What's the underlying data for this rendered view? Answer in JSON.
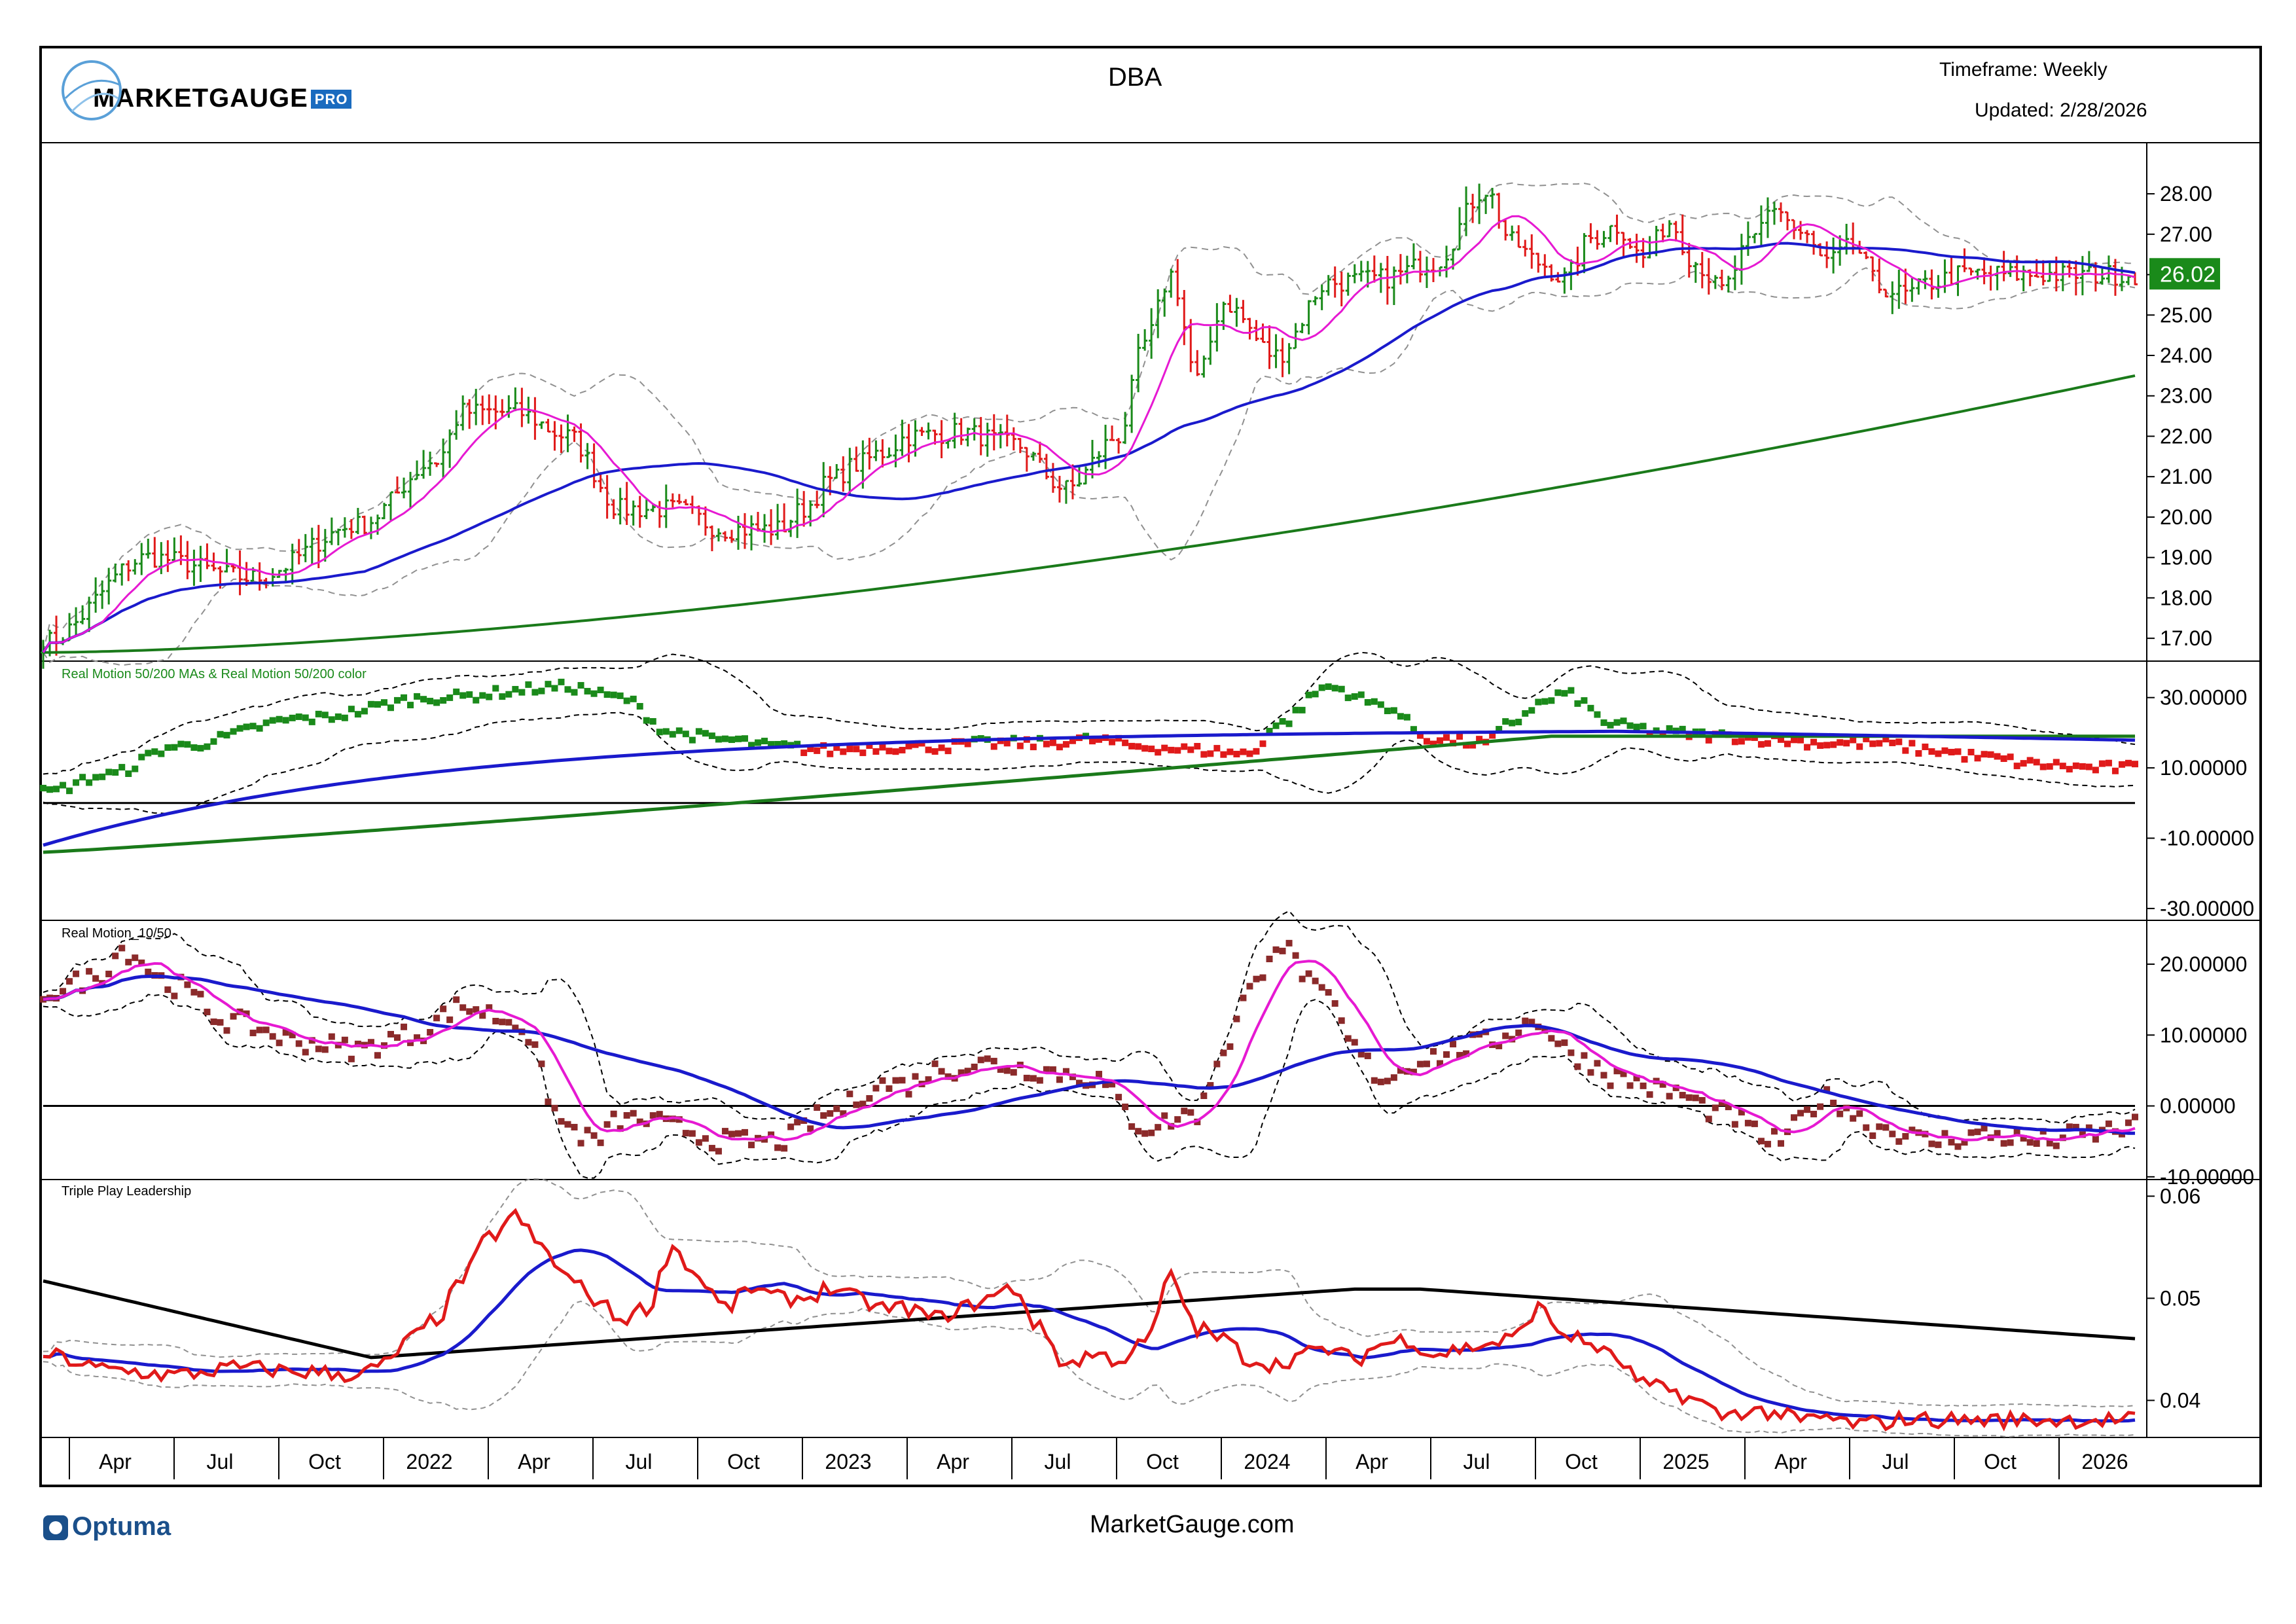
{
  "header": {
    "logo_text": "MARKETGAUGE",
    "logo_badge": "PRO",
    "symbol": "DBA",
    "timeframe": "Timeframe: Weekly",
    "updated": "Updated: 2/28/2026"
  },
  "footer": {
    "optuma": "Optuma",
    "site": "MarketGauge.com"
  },
  "colors": {
    "up_bar": "#1a8a1a",
    "down_bar": "#e01a1a",
    "ma10": "#e619d2",
    "ma50": "#1a1acc",
    "ma200": "#1a7a1a",
    "band": "#909090",
    "last_price_bg": "#1a8a1a"
  },
  "chart_data": [
    {
      "type": "ohlc",
      "title": "DBA",
      "timeframe": "Weekly",
      "y_ticks": [
        "28.00",
        "27.00",
        "26.00",
        "25.00",
        "24.00",
        "23.00",
        "22.00",
        "21.00",
        "20.00",
        "19.00",
        "18.00",
        "17.00"
      ],
      "ylim": [
        16.5,
        29.2
      ],
      "last_price": "26.02",
      "x_ticks": [
        "Apr",
        "Jul",
        "Oct",
        "2022",
        "Apr",
        "Jul",
        "Oct",
        "2023",
        "Apr",
        "Jul",
        "Oct",
        "2024",
        "Apr",
        "Jul",
        "Oct",
        "2025",
        "Apr",
        "Jul",
        "Oct",
        "2026"
      ],
      "anchor_weeks": [
        0,
        16,
        32,
        48,
        60,
        64,
        72,
        80,
        88,
        96,
        104,
        112,
        116,
        120,
        124,
        128,
        132,
        140,
        148,
        156,
        164,
        168,
        172,
        176,
        180,
        188,
        196,
        204,
        212,
        220,
        224,
        228,
        232,
        236,
        240,
        244,
        248,
        252,
        256,
        260,
        264,
        268,
        272,
        276,
        280,
        284,
        288,
        292,
        296,
        300,
        304,
        308,
        312,
        316,
        318
      ],
      "anchor_close": [
        16.9,
        19.0,
        18.5,
        19.8,
        21.4,
        22.6,
        22.6,
        22.0,
        20.2,
        20.2,
        19.7,
        19.7,
        20.2,
        20.9,
        21.3,
        21.6,
        22.0,
        22.1,
        21.8,
        20.7,
        22.0,
        24.3,
        26.0,
        23.4,
        25.3,
        24.0,
        25.8,
        25.9,
        26.3,
        28.1,
        26.8,
        26.3,
        25.9,
        26.9,
        27.2,
        26.4,
        27.3,
        26.3,
        25.6,
        26.7,
        27.7,
        27.0,
        26.3,
        26.7,
        25.7,
        25.5,
        25.8,
        26.0,
        26.02,
        26.0,
        26.0,
        26.0,
        26.0,
        26.0,
        26.0
      ],
      "series_names": [
        "10-week MA",
        "50-week MA",
        "200-week MA",
        "Bollinger Bands"
      ]
    },
    {
      "type": "scatter",
      "title": "Real Motion 50/200 MAs & Real Motion 50/200 color",
      "y_ticks": [
        "30.00000",
        "10.00000",
        "-10.00000",
        "-30.00000"
      ],
      "ylim": [
        -33,
        40
      ],
      "reference_line": 0,
      "anchor_weeks": [
        0,
        10,
        20,
        40,
        60,
        80,
        88,
        96,
        104,
        112,
        120,
        128,
        136,
        144,
        152,
        160,
        168,
        176,
        184,
        188,
        196,
        204,
        212,
        220,
        224,
        228,
        232,
        240,
        248,
        256,
        264,
        272,
        280,
        288,
        296,
        304,
        312,
        318
      ],
      "anchor_values": [
        3,
        8,
        16,
        24,
        30,
        33,
        30,
        20,
        18,
        16,
        15,
        16,
        16,
        17,
        17,
        18,
        16,
        15,
        14,
        22,
        33,
        28,
        18,
        17,
        23,
        28,
        31,
        22,
        20,
        19,
        18,
        17,
        17,
        15,
        13,
        11,
        10,
        10
      ]
    },
    {
      "type": "scatter",
      "title": "Real Motion_10/50",
      "y_ticks": [
        "20.00000",
        "10.00000",
        "0.00000",
        "-10.00000"
      ],
      "ylim": [
        -10.2,
        26
      ],
      "reference_line": 0,
      "anchor_weeks": [
        0,
        8,
        12,
        20,
        28,
        40,
        48,
        56,
        64,
        72,
        80,
        84,
        88,
        92,
        96,
        104,
        112,
        120,
        128,
        132,
        136,
        144,
        152,
        160,
        168,
        176,
        180,
        184,
        188,
        196,
        200,
        204,
        212,
        220,
        228,
        232,
        236,
        240,
        248,
        256,
        264,
        272,
        280,
        288,
        296,
        304,
        312,
        318
      ],
      "anchor_values": [
        16,
        18,
        22,
        17,
        12,
        9,
        8,
        10,
        14,
        12,
        -3,
        -5,
        -2,
        -2,
        -3,
        -5,
        -5,
        -1,
        3,
        3,
        5,
        6,
        5,
        4,
        -3,
        -1,
        8,
        16,
        23,
        15,
        8,
        4,
        7,
        9,
        12,
        8,
        6,
        4,
        2,
        -1,
        -5,
        1,
        -3,
        -5,
        -4,
        -5,
        -4,
        -3
      ]
    },
    {
      "type": "line",
      "title": "Triple Play Leadership",
      "y_ticks": [
        "0.06",
        "0.05",
        "0.04"
      ],
      "ylim": [
        0.0365,
        0.0615
      ],
      "anchor_weeks": [
        0,
        10,
        20,
        30,
        40,
        48,
        52,
        56,
        60,
        64,
        68,
        72,
        76,
        80,
        84,
        88,
        92,
        96,
        100,
        104,
        108,
        112,
        116,
        120,
        124,
        128,
        132,
        136,
        140,
        144,
        148,
        152,
        156,
        160,
        164,
        168,
        172,
        176,
        180,
        184,
        188,
        192,
        196,
        200,
        204,
        208,
        212,
        216,
        220,
        224,
        228,
        232,
        236,
        240,
        244,
        248,
        252,
        256,
        260,
        264,
        268,
        272,
        276,
        280,
        284,
        288,
        292,
        296,
        300,
        304,
        308,
        312,
        316,
        318
      ],
      "anchor_values": [
        0.0445,
        0.043,
        0.0425,
        0.0432,
        0.0428,
        0.0425,
        0.0435,
        0.046,
        0.048,
        0.052,
        0.056,
        0.058,
        0.055,
        0.052,
        0.05,
        0.048,
        0.049,
        0.055,
        0.052,
        0.049,
        0.051,
        0.05,
        0.05,
        0.051,
        0.05,
        0.049,
        0.049,
        0.048,
        0.049,
        0.05,
        0.051,
        0.047,
        0.0435,
        0.0445,
        0.044,
        0.0455,
        0.052,
        0.047,
        0.046,
        0.044,
        0.0435,
        0.0445,
        0.045,
        0.044,
        0.0455,
        0.046,
        0.0445,
        0.045,
        0.0455,
        0.046,
        0.049,
        0.0465,
        0.0455,
        0.044,
        0.0415,
        0.041,
        0.04,
        0.0385,
        0.039,
        0.0388,
        0.038,
        0.0383,
        0.0377,
        0.0378,
        0.0382,
        0.0381,
        0.0381,
        0.0381,
        0.0381,
        0.0381,
        0.0381,
        0.0381,
        0.0381,
        0.0381
      ]
    }
  ]
}
